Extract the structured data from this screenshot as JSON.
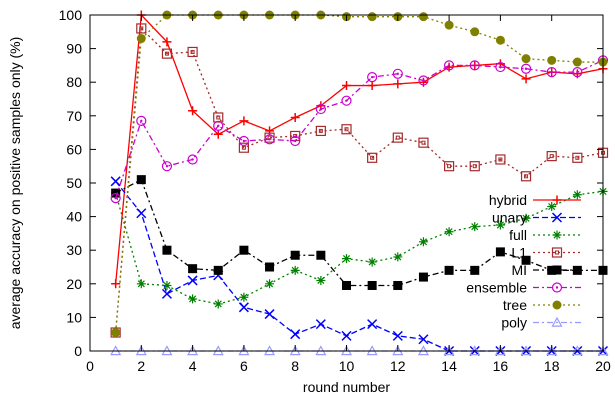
{
  "chart_data": {
    "type": "line",
    "xlabel": "round number",
    "ylabel": "average accuracy on positive samples only (%)",
    "xlim": [
      0,
      20
    ],
    "ylim": [
      0,
      100
    ],
    "xticks": [
      0,
      2,
      4,
      6,
      8,
      10,
      12,
      14,
      16,
      18,
      20
    ],
    "yticks": [
      0,
      10,
      20,
      30,
      40,
      50,
      60,
      70,
      80,
      90,
      100
    ],
    "grid": false,
    "legend_position": "bottom-right",
    "x": [
      1,
      2,
      3,
      4,
      5,
      6,
      7,
      8,
      9,
      10,
      11,
      12,
      13,
      14,
      15,
      16,
      17,
      18,
      19,
      20
    ],
    "series": [
      {
        "name": "hybrid",
        "color": "#ff0000",
        "dash": "solid",
        "marker": "plus",
        "values": [
          20,
          100,
          92,
          71.5,
          64.5,
          68.5,
          65.5,
          69.5,
          73,
          79,
          79,
          79.5,
          80,
          84.5,
          85,
          85.5,
          81,
          83,
          82.5,
          84
        ]
      },
      {
        "name": "unary",
        "color": "#0000ff",
        "dash": "dashed",
        "marker": "cross",
        "values": [
          50.5,
          41,
          17,
          21,
          22.5,
          13,
          11,
          5,
          8,
          4.5,
          8,
          4.5,
          3.5,
          0,
          0,
          0,
          0,
          0,
          0,
          0
        ]
      },
      {
        "name": "full",
        "color": "#008000",
        "dash": "dotted",
        "marker": "star",
        "values": [
          47,
          20,
          19.5,
          15.5,
          14,
          16,
          20,
          24,
          21,
          27.5,
          26.5,
          28,
          32.5,
          35.5,
          37,
          37.5,
          39.5,
          43,
          46.5,
          47.5
        ]
      },
      {
        "name": "L1",
        "color": "#a52a2a",
        "dash": "dotted",
        "marker": "square-open",
        "values": [
          5.5,
          96,
          88.5,
          89,
          69.5,
          60.5,
          63.5,
          64,
          65.5,
          66,
          57.5,
          63.5,
          62,
          55,
          55,
          57,
          52,
          58,
          57.5,
          59
        ]
      },
      {
        "name": "MI",
        "color": "#000000",
        "dash": "dashdot",
        "marker": "square-filled",
        "values": [
          47,
          51,
          30,
          24.5,
          24,
          30,
          25,
          28.5,
          28.5,
          19.5,
          19.5,
          19.5,
          22,
          24,
          24,
          29.5,
          27,
          24,
          24,
          24
        ]
      },
      {
        "name": "ensemble",
        "color": "#cc00cc",
        "dash": "dashdot",
        "marker": "circle-open",
        "values": [
          45.5,
          68.5,
          55,
          57,
          67,
          62.5,
          63,
          62.5,
          72,
          74.5,
          81.5,
          82.5,
          80.5,
          85,
          85,
          84.5,
          84,
          83,
          83,
          86.5
        ]
      },
      {
        "name": "tree",
        "color": "#808000",
        "dash": "dotted",
        "marker": "circle-filled",
        "values": [
          5.5,
          93,
          100,
          100,
          100,
          100,
          100,
          100,
          100,
          99.5,
          99.5,
          99.5,
          99.5,
          97,
          95,
          92.5,
          87,
          86.5,
          86,
          86
        ]
      },
      {
        "name": "poly",
        "color": "#9999ff",
        "dash": "dashdot",
        "marker": "triangle-open",
        "values": [
          0,
          0,
          0,
          0,
          0,
          0,
          0,
          0,
          0,
          0,
          0,
          0,
          0,
          0,
          0,
          0,
          0,
          0,
          0,
          0
        ]
      }
    ]
  }
}
